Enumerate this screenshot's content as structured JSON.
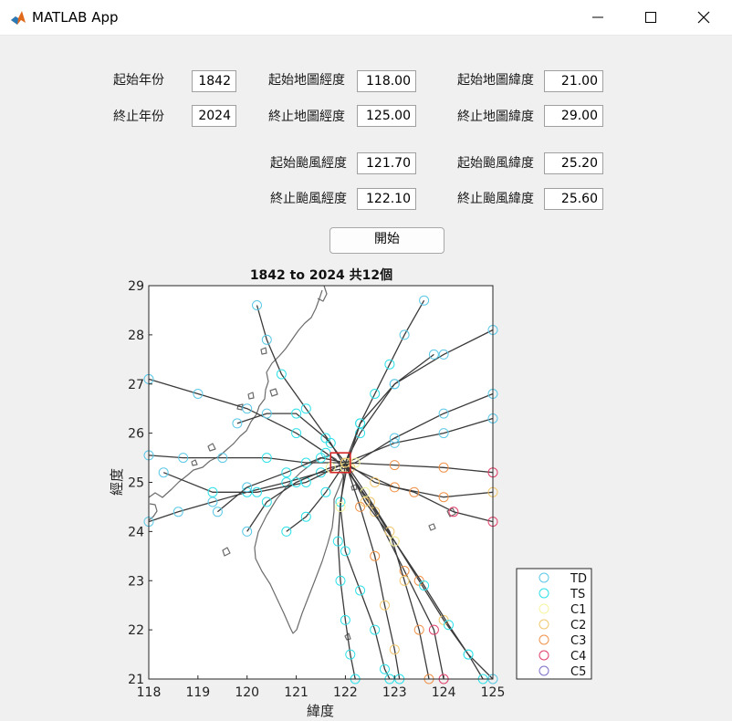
{
  "window": {
    "title": "MATLAB App"
  },
  "form": {
    "start_year": {
      "label": "起始年份",
      "value": "1842"
    },
    "end_year": {
      "label": "終止年份",
      "value": "2024"
    },
    "map_start_lon": {
      "label": "起始地圖經度",
      "value": "118.00"
    },
    "map_end_lon": {
      "label": "終止地圖經度",
      "value": "125.00"
    },
    "map_start_lat": {
      "label": "起始地圖緯度",
      "value": "21.00"
    },
    "map_end_lat": {
      "label": "終止地圖緯度",
      "value": "29.00"
    },
    "ty_start_lon": {
      "label": "起始颱風經度",
      "value": "121.70"
    },
    "ty_end_lon": {
      "label": "終止颱風經度",
      "value": "122.10"
    },
    "ty_start_lat": {
      "label": "起始颱風緯度",
      "value": "25.20"
    },
    "ty_end_lat": {
      "label": "終止颱風緯度",
      "value": "25.60"
    },
    "start_button_label": "開始"
  },
  "chart_data": {
    "type": "line",
    "title": "1842 to 2024 共12個",
    "xlabel": "緯度",
    "ylabel": "經度",
    "xlim": [
      118,
      125
    ],
    "ylim": [
      21,
      29
    ],
    "xticks": [
      "118",
      "119",
      "120",
      "121",
      "122",
      "123",
      "124",
      "125"
    ],
    "yticks": [
      "21",
      "22",
      "23",
      "24",
      "25",
      "26",
      "27",
      "28",
      "29"
    ],
    "selection_box": {
      "x": [
        121.7,
        122.1
      ],
      "y": [
        25.2,
        25.6
      ],
      "color": "#d62728"
    },
    "legend": {
      "placement": "outside-bottom-right",
      "entries": [
        {
          "name": "TD",
          "color": "#5bc8e6"
        },
        {
          "name": "TS",
          "color": "#2fe0e8"
        },
        {
          "name": "C1",
          "color": "#f5f5a0"
        },
        {
          "name": "C2",
          "color": "#f2c870"
        },
        {
          "name": "C3",
          "color": "#f0924a"
        },
        {
          "name": "C4",
          "color": "#e0406a"
        },
        {
          "name": "C5",
          "color": "#7a70c8"
        }
      ]
    },
    "tracks": [
      {
        "points": [
          [
            123.6,
            28.7,
            "TD"
          ],
          [
            123.2,
            28.0,
            "TD"
          ],
          [
            122.9,
            27.4,
            "TS"
          ],
          [
            122.6,
            26.8,
            "TS"
          ],
          [
            122.3,
            26.2,
            "TS"
          ],
          [
            122.05,
            25.4,
            "C1"
          ],
          [
            121.9,
            24.6,
            "TS"
          ],
          [
            121.85,
            23.8,
            "TS"
          ],
          [
            121.9,
            23.0,
            "TS"
          ],
          [
            122.0,
            22.2,
            "TS"
          ],
          [
            122.1,
            21.5,
            "TS"
          ],
          [
            122.2,
            21.0,
            "TS"
          ]
        ]
      },
      {
        "points": [
          [
            125.0,
            28.1,
            "TD"
          ],
          [
            124.0,
            27.6,
            "TD"
          ],
          [
            123.0,
            27.0,
            "TD"
          ],
          [
            122.3,
            26.0,
            "TS"
          ],
          [
            122.0,
            25.4,
            "C2"
          ],
          [
            121.9,
            24.5,
            "C1"
          ],
          [
            122.0,
            23.6,
            "TS"
          ],
          [
            122.3,
            22.8,
            "TS"
          ],
          [
            122.6,
            22.0,
            "TS"
          ],
          [
            122.8,
            21.2,
            "TS"
          ],
          [
            122.9,
            21.0,
            "TS"
          ]
        ]
      },
      {
        "points": [
          [
            125.0,
            26.3,
            "TD"
          ],
          [
            124.0,
            26.0,
            "TD"
          ],
          [
            123.0,
            25.8,
            "TD"
          ],
          [
            122.0,
            25.4,
            "TS"
          ],
          [
            121.6,
            24.8,
            "TS"
          ],
          [
            121.2,
            24.3,
            "TS"
          ],
          [
            120.8,
            24.0,
            "TS"
          ]
        ]
      },
      {
        "points": [
          [
            125.0,
            25.2,
            "C4"
          ],
          [
            124.0,
            25.3,
            "C3"
          ],
          [
            123.0,
            25.35,
            "C3"
          ],
          [
            122.0,
            25.4,
            "C2"
          ],
          [
            121.2,
            25.4,
            "TS"
          ],
          [
            120.4,
            25.5,
            "TS"
          ],
          [
            119.5,
            25.5,
            "TD"
          ],
          [
            118.7,
            25.5,
            "TD"
          ],
          [
            118.0,
            25.55,
            "TD"
          ]
        ]
      },
      {
        "points": [
          [
            125.0,
            24.8,
            "C2"
          ],
          [
            124.0,
            24.7,
            "C3"
          ],
          [
            123.0,
            24.9,
            "C3"
          ],
          [
            122.1,
            25.3,
            "C2"
          ],
          [
            121.5,
            25.2,
            "TS"
          ],
          [
            120.8,
            25.0,
            "TS"
          ],
          [
            120.0,
            24.8,
            "TS"
          ],
          [
            119.3,
            24.6,
            "TD"
          ],
          [
            118.6,
            24.4,
            "TD"
          ],
          [
            118.0,
            24.2,
            "TD"
          ]
        ]
      },
      {
        "points": [
          [
            125.0,
            24.2,
            "C4"
          ],
          [
            124.2,
            24.4,
            "C4"
          ],
          [
            123.4,
            24.8,
            "C3"
          ],
          [
            122.6,
            25.0,
            "C2"
          ],
          [
            122.0,
            25.4,
            "C2"
          ],
          [
            121.2,
            25.0,
            "TS"
          ],
          [
            120.2,
            24.8,
            "TS"
          ],
          [
            119.3,
            24.8,
            "TS"
          ],
          [
            118.3,
            25.2,
            "TD"
          ]
        ]
      },
      {
        "points": [
          [
            118.0,
            27.1,
            "TD"
          ],
          [
            119.0,
            26.8,
            "TD"
          ],
          [
            120.0,
            26.5,
            "TD"
          ],
          [
            121.0,
            26.0,
            "TS"
          ],
          [
            121.6,
            25.6,
            "TS"
          ],
          [
            122.0,
            25.3,
            "C1"
          ],
          [
            122.5,
            24.6,
            "C2"
          ],
          [
            123.0,
            23.8,
            "C3"
          ],
          [
            123.5,
            23.0,
            "C3"
          ],
          [
            124.0,
            22.2,
            "C2"
          ],
          [
            124.5,
            21.5,
            "TS"
          ],
          [
            124.8,
            21.0,
            "TS"
          ]
        ]
      },
      {
        "points": [
          [
            120.2,
            28.6,
            "TD"
          ],
          [
            120.4,
            27.9,
            "TD"
          ],
          [
            120.7,
            27.2,
            "TS"
          ],
          [
            121.2,
            26.5,
            "TS"
          ],
          [
            121.7,
            25.8,
            "TS"
          ],
          [
            122.0,
            25.3,
            "C1"
          ],
          [
            122.6,
            24.4,
            "C2"
          ],
          [
            123.2,
            23.2,
            "C3"
          ],
          [
            123.8,
            22.0,
            "C4"
          ],
          [
            124.0,
            21.0,
            "C4"
          ]
        ]
      },
      {
        "points": [
          [
            120.0,
            24.0,
            "TD"
          ],
          [
            120.4,
            24.6,
            "TS"
          ],
          [
            121.0,
            25.0,
            "TS"
          ],
          [
            121.7,
            25.3,
            "C1"
          ],
          [
            122.2,
            25.4,
            "C1"
          ],
          [
            123.0,
            25.9,
            "TD"
          ],
          [
            124.0,
            26.4,
            "TD"
          ],
          [
            125.0,
            26.8,
            "TD"
          ]
        ]
      },
      {
        "points": [
          [
            119.8,
            26.2,
            "TD"
          ],
          [
            120.4,
            26.4,
            "TD"
          ],
          [
            121.0,
            26.4,
            "TS"
          ],
          [
            121.6,
            25.9,
            "TS"
          ],
          [
            122.0,
            25.4,
            "C2"
          ],
          [
            122.4,
            24.8,
            "C1"
          ],
          [
            122.9,
            24.0,
            "C2"
          ],
          [
            123.2,
            23.0,
            "C2"
          ],
          [
            123.5,
            22.0,
            "C3"
          ],
          [
            123.7,
            21.0,
            "C3"
          ]
        ]
      },
      {
        "points": [
          [
            119.4,
            24.4,
            "TD"
          ],
          [
            120.0,
            24.9,
            "TD"
          ],
          [
            120.8,
            25.2,
            "TS"
          ],
          [
            121.5,
            25.5,
            "TS"
          ],
          [
            122.0,
            25.4,
            "C1"
          ],
          [
            122.3,
            24.5,
            "C3"
          ],
          [
            122.6,
            23.5,
            "C3"
          ],
          [
            122.8,
            22.5,
            "C2"
          ],
          [
            123.0,
            21.6,
            "C2"
          ],
          [
            123.1,
            21.0,
            "TS"
          ]
        ]
      },
      {
        "points": [
          [
            123.8,
            27.6,
            "TD"
          ],
          [
            123.0,
            27.0,
            "TD"
          ],
          [
            122.3,
            26.2,
            "TS"
          ],
          [
            122.0,
            25.4,
            "C2"
          ],
          [
            122.4,
            24.6,
            "C2"
          ],
          [
            123.0,
            23.8,
            "C1"
          ],
          [
            123.6,
            22.9,
            "TS"
          ],
          [
            124.1,
            22.1,
            "TS"
          ],
          [
            124.5,
            21.5,
            "TS"
          ],
          [
            125.0,
            21.0,
            "TD"
          ]
        ]
      }
    ]
  }
}
